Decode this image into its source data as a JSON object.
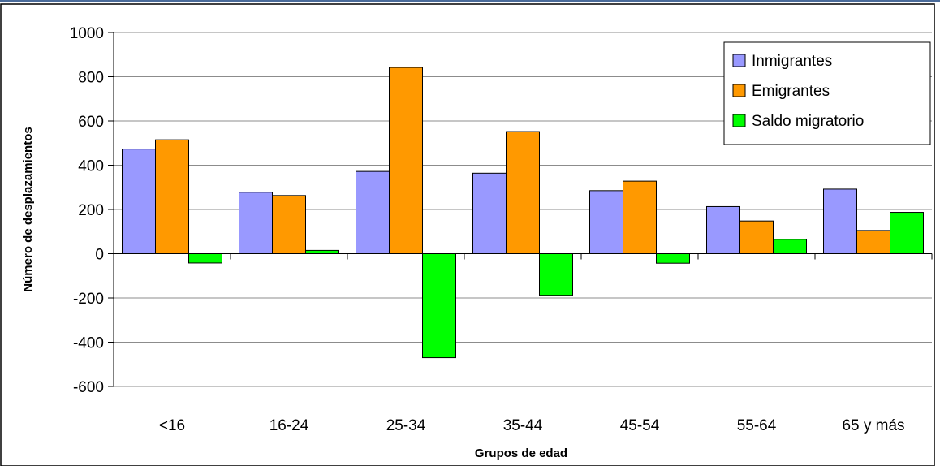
{
  "chart_data": {
    "type": "bar",
    "categories": [
      "<16",
      "16-24",
      "25-34",
      "35-44",
      "45-54",
      "55-64",
      "65 y más"
    ],
    "series": [
      {
        "name": "Inmigrantes",
        "values": [
          473,
          278,
          372,
          364,
          285,
          213,
          292
        ],
        "color": "#9999ff"
      },
      {
        "name": "Emigrantes",
        "values": [
          515,
          263,
          842,
          552,
          328,
          148,
          105
        ],
        "color": "#ff9900"
      },
      {
        "name": "Saldo migratorio",
        "values": [
          -42,
          15,
          -470,
          -188,
          -43,
          65,
          187
        ],
        "color": "#00ff00"
      }
    ],
    "xlabel": "Grupos de edad",
    "ylabel": "Número de desplazamientos",
    "ylim": [
      -600,
      1000
    ],
    "yticks": [
      -600,
      -400,
      -200,
      0,
      200,
      400,
      600,
      800,
      1000
    ],
    "grid": true,
    "legend_position": "top-right"
  }
}
